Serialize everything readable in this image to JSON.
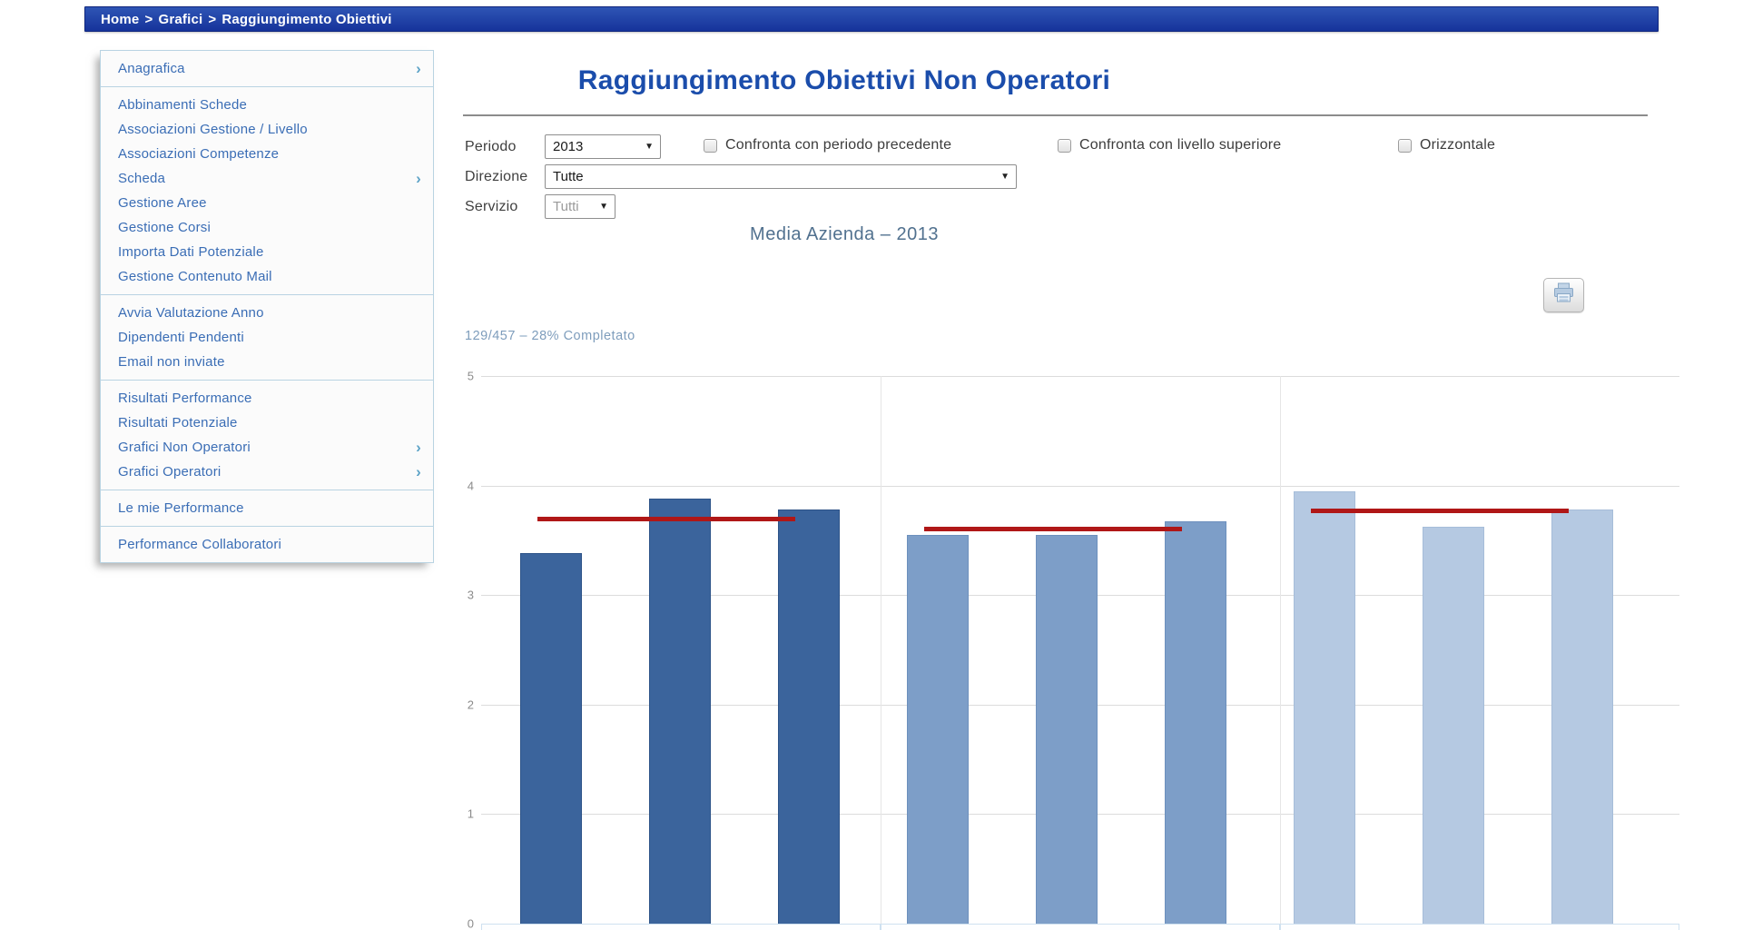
{
  "breadcrumb": {
    "separator": ">",
    "items": [
      "Home",
      "Grafici",
      "Raggiungimento Obiettivi"
    ]
  },
  "sidebar": {
    "groups": [
      {
        "items": [
          {
            "label": "Anagrafica",
            "submenu": true
          }
        ]
      },
      {
        "items": [
          {
            "label": "Abbinamenti Schede"
          },
          {
            "label": "Associazioni Gestione / Livello"
          },
          {
            "label": "Associazioni Competenze"
          },
          {
            "label": "Scheda",
            "submenu": true
          },
          {
            "label": "Gestione Aree"
          },
          {
            "label": "Gestione Corsi"
          },
          {
            "label": "Importa Dati Potenziale"
          },
          {
            "label": "Gestione Contenuto Mail"
          }
        ]
      },
      {
        "items": [
          {
            "label": "Avvia Valutazione Anno"
          },
          {
            "label": "Dipendenti Pendenti"
          },
          {
            "label": "Email non inviate"
          }
        ]
      },
      {
        "items": [
          {
            "label": "Risultati Performance"
          },
          {
            "label": "Risultati Potenziale"
          },
          {
            "label": "Grafici Non Operatori",
            "submenu": true
          },
          {
            "label": "Grafici Operatori",
            "submenu": true
          }
        ]
      },
      {
        "items": [
          {
            "label": "Le mie Performance"
          }
        ]
      },
      {
        "items": [
          {
            "label": "Performance Collaboratori"
          }
        ]
      }
    ]
  },
  "main": {
    "title": "Raggiungimento Obiettivi Non Operatori"
  },
  "filters": {
    "periodo": {
      "label": "Periodo",
      "value": "2013"
    },
    "direzione": {
      "label": "Direzione",
      "value": "Tutte"
    },
    "servizio": {
      "label": "Servizio",
      "value": "Tutti"
    },
    "checkboxes": [
      {
        "label": "Confronta con periodo precedente",
        "checked": false
      },
      {
        "label": "Confronta con livello superiore",
        "checked": false
      },
      {
        "label": "Orizzontale",
        "checked": false
      }
    ]
  },
  "chart_data": {
    "type": "bar",
    "title": "Media Azienda – 2013",
    "completion": "129/457 – 28% Completato",
    "ylim": [
      0,
      5
    ],
    "yticks": [
      0,
      1,
      2,
      3,
      4,
      5
    ],
    "grid": true,
    "legend_position": "none",
    "x_tick_labels_visible": false,
    "groups": [
      {
        "bar_color": "#3b649c",
        "bar_border": "#2d5388",
        "values": [
          3.38,
          3.88,
          3.78
        ],
        "target": 3.7
      },
      {
        "bar_color": "#7d9ec8",
        "bar_border": "#6d90bd",
        "values": [
          3.55,
          3.55,
          3.67
        ],
        "target": 3.61
      },
      {
        "bar_color": "#b5c9e2",
        "bar_border": "#a6bdd9",
        "values": [
          3.95,
          3.62,
          3.78
        ],
        "target": 3.77
      }
    ],
    "target_color": "#b01717"
  },
  "icons": {
    "chevron": "›",
    "select_arrow": "▼",
    "print": "printer"
  },
  "colors": {
    "breadcrumb_bg": "#1c3ca6",
    "sidebar_link": "#3a6db5",
    "page_title": "#1b4dab",
    "chart_title": "#51718f",
    "completion_text": "#7e9dbc",
    "gridline": "#dcdcdc"
  }
}
